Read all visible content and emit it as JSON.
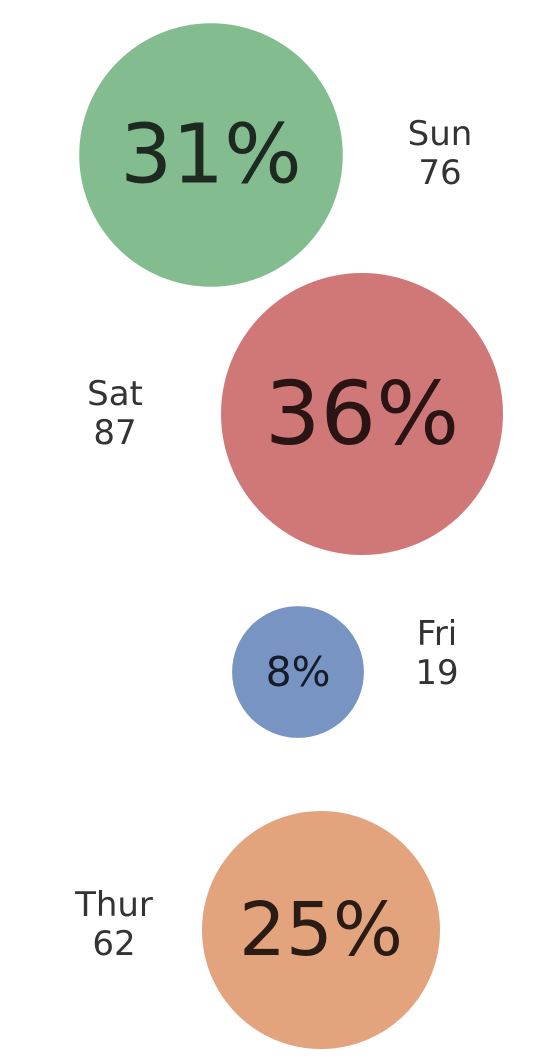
{
  "chart_data": {
    "type": "bubble",
    "bubbles": [
      {
        "category": "Sun",
        "count": "76",
        "percent": "31%",
        "value": 76,
        "color": "#83bd8f",
        "text_color": "#1e2a20"
      },
      {
        "category": "Sat",
        "count": "87",
        "percent": "36%",
        "value": 87,
        "color": "#d07878",
        "text_color": "#2a1414"
      },
      {
        "category": "Fri",
        "count": "19",
        "percent": "8%",
        "value": 19,
        "color": "#7794c3",
        "text_color": "#141c2a"
      },
      {
        "category": "Thur",
        "count": "62",
        "percent": "25%",
        "value": 62,
        "color": "#e3a37d",
        "text_color": "#2a1c14"
      }
    ]
  }
}
